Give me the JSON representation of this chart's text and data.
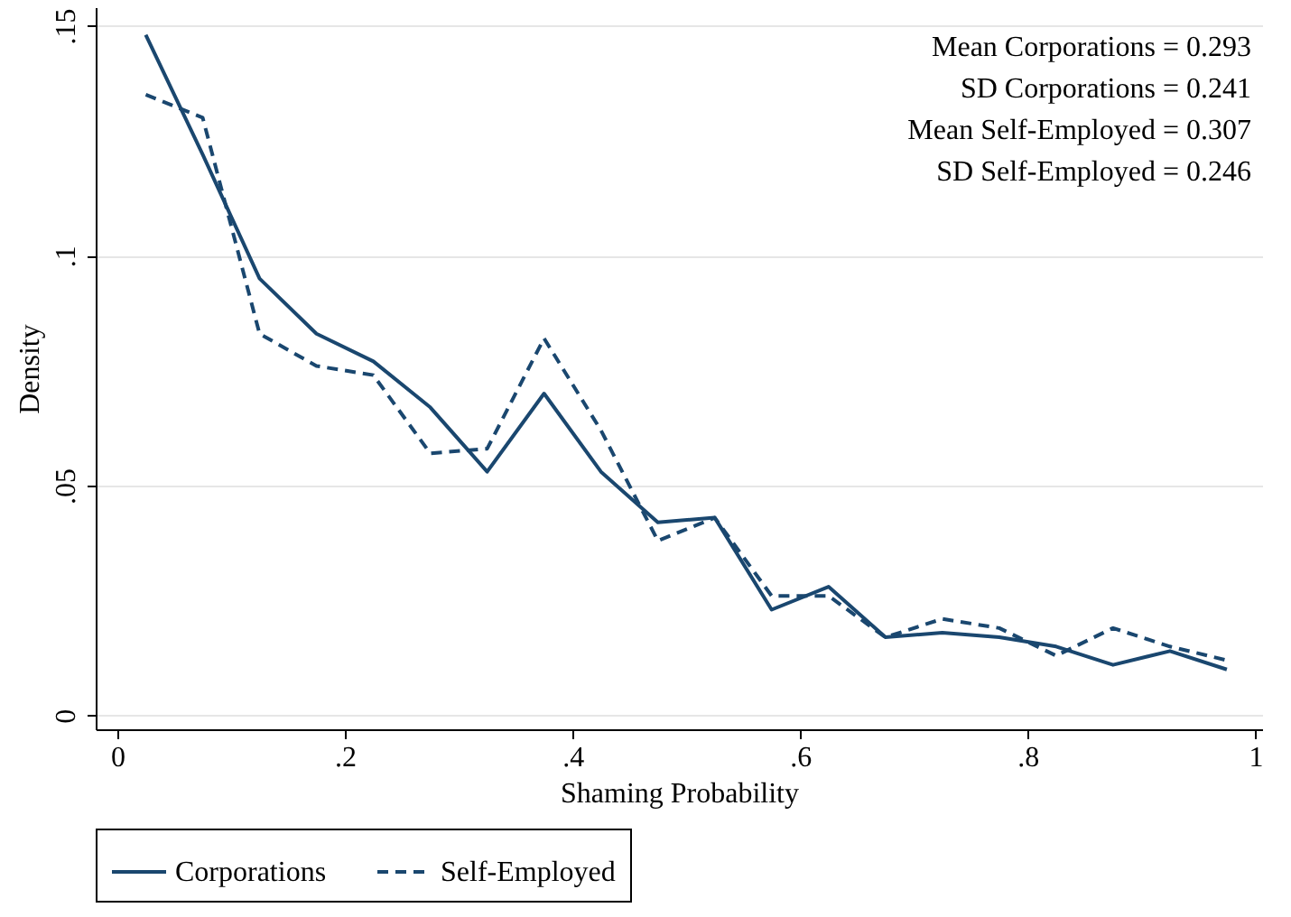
{
  "chart_data": {
    "type": "line",
    "xlabel": "Shaming Probability",
    "ylabel": "Density",
    "x": [
      0.025,
      0.075,
      0.125,
      0.175,
      0.225,
      0.275,
      0.325,
      0.375,
      0.425,
      0.475,
      0.525,
      0.575,
      0.625,
      0.675,
      0.725,
      0.775,
      0.825,
      0.875,
      0.925,
      0.975
    ],
    "series": [
      {
        "name": "Corporations",
        "color": "#1a476f",
        "line_style": "solid",
        "values": [
          0.148,
          0.122,
          0.095,
          0.083,
          0.077,
          0.067,
          0.053,
          0.07,
          0.053,
          0.042,
          0.043,
          0.023,
          0.028,
          0.017,
          0.018,
          0.017,
          0.015,
          0.011,
          0.014,
          0.01
        ]
      },
      {
        "name": "Self-Employed",
        "color": "#1a476f",
        "line_style": "dashed",
        "values": [
          0.135,
          0.13,
          0.083,
          0.076,
          0.074,
          0.057,
          0.058,
          0.082,
          0.062,
          0.038,
          0.043,
          0.026,
          0.026,
          0.017,
          0.021,
          0.019,
          0.013,
          0.019,
          0.015,
          0.012
        ]
      }
    ],
    "xlim": [
      -0.019,
      1.006
    ],
    "ylim": [
      -0.003,
      0.154
    ],
    "xticks": [
      0,
      {
        "value": 0.2,
        "label": ".2"
      },
      {
        "value": 0.4,
        "label": ".4"
      },
      {
        "value": 0.6,
        "label": ".6"
      },
      {
        "value": 0.8,
        "label": ".8"
      },
      1
    ],
    "yticks": [
      0,
      {
        "value": 0.05,
        "label": ".05"
      },
      {
        "value": 0.1,
        "label": ".1"
      },
      {
        "value": 0.15,
        "label": ".15"
      }
    ],
    "grid": "y",
    "legend": "bottom",
    "annotations": [
      "Mean Corporations = 0.293",
      "SD Corporations = 0.241",
      "Mean Self-Employed = 0.307",
      "SD Self-Employed = 0.246"
    ]
  }
}
